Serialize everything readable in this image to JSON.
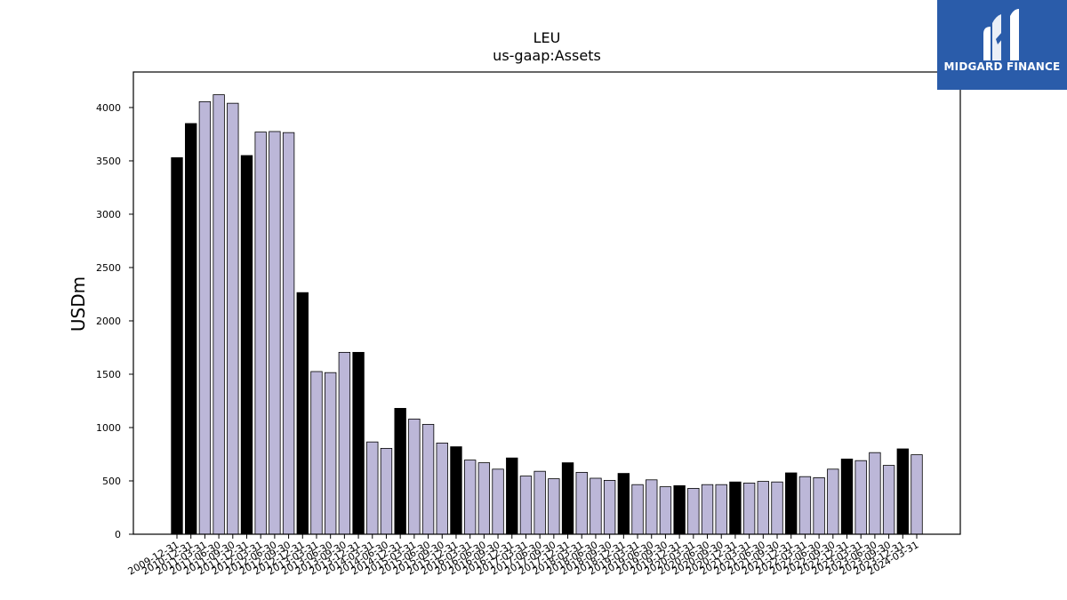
{
  "brand": {
    "name": "MIDGARD FINANCE",
    "logo_color": "#2a5caa"
  },
  "chart_data": {
    "type": "bar",
    "title": "LEU",
    "subtitle": "us-gaap:Assets",
    "ylabel": "USDm",
    "xlabel": "",
    "ylim": [
      0,
      4333
    ],
    "yticks": [
      0,
      500,
      1000,
      1500,
      2000,
      2500,
      3000,
      3500,
      4000
    ],
    "grid": false,
    "colors": {
      "annual": "#000000",
      "quarterly": "#bcb7d8",
      "edge": "#000000"
    },
    "categories": [
      "2009-12-31",
      "2010-12-31",
      "2011-03-31",
      "2011-06-30",
      "2011-09-30",
      "2011-12-31",
      "2012-03-31",
      "2012-06-30",
      "2012-09-30",
      "2012-12-31",
      "2013-03-31",
      "2013-06-30",
      "2013-09-30",
      "2013-12-31",
      "2014-03-31",
      "2014-06-30",
      "2014-12-31",
      "2015-03-31",
      "2015-06-30",
      "2015-09-30",
      "2015-12-31",
      "2016-03-31",
      "2016-06-30",
      "2016-09-30",
      "2016-12-31",
      "2017-03-31",
      "2017-06-30",
      "2017-09-30",
      "2017-12-31",
      "2018-03-31",
      "2018-06-30",
      "2018-09-30",
      "2018-12-31",
      "2019-03-31",
      "2019-06-30",
      "2019-09-30",
      "2019-12-31",
      "2020-03-31",
      "2020-06-30",
      "2020-09-30",
      "2020-12-31",
      "2021-03-31",
      "2021-06-30",
      "2021-09-30",
      "2021-12-31",
      "2022-03-31",
      "2022-06-30",
      "2022-09-30",
      "2022-12-31",
      "2023-03-31",
      "2023-06-30",
      "2023-09-30",
      "2023-12-31",
      "2024-03-31"
    ],
    "values": [
      3530,
      3850,
      4055,
      4120,
      4040,
      3550,
      3770,
      3775,
      3765,
      2265,
      1525,
      1515,
      1705,
      1705,
      865,
      805,
      1180,
      1080,
      1030,
      855,
      820,
      695,
      670,
      610,
      715,
      545,
      590,
      520,
      670,
      580,
      525,
      505,
      570,
      465,
      510,
      445,
      455,
      430,
      465,
      465,
      490,
      480,
      495,
      490,
      575,
      540,
      530,
      610,
      705,
      690,
      765,
      645,
      800,
      745
    ],
    "annual": [
      true,
      true,
      false,
      false,
      false,
      true,
      false,
      false,
      false,
      true,
      false,
      false,
      false,
      true,
      false,
      false,
      true,
      false,
      false,
      false,
      true,
      false,
      false,
      false,
      true,
      false,
      false,
      false,
      true,
      false,
      false,
      false,
      true,
      false,
      false,
      false,
      true,
      false,
      false,
      false,
      true,
      false,
      false,
      false,
      true,
      false,
      false,
      false,
      true,
      false,
      false,
      false,
      true,
      false
    ]
  }
}
